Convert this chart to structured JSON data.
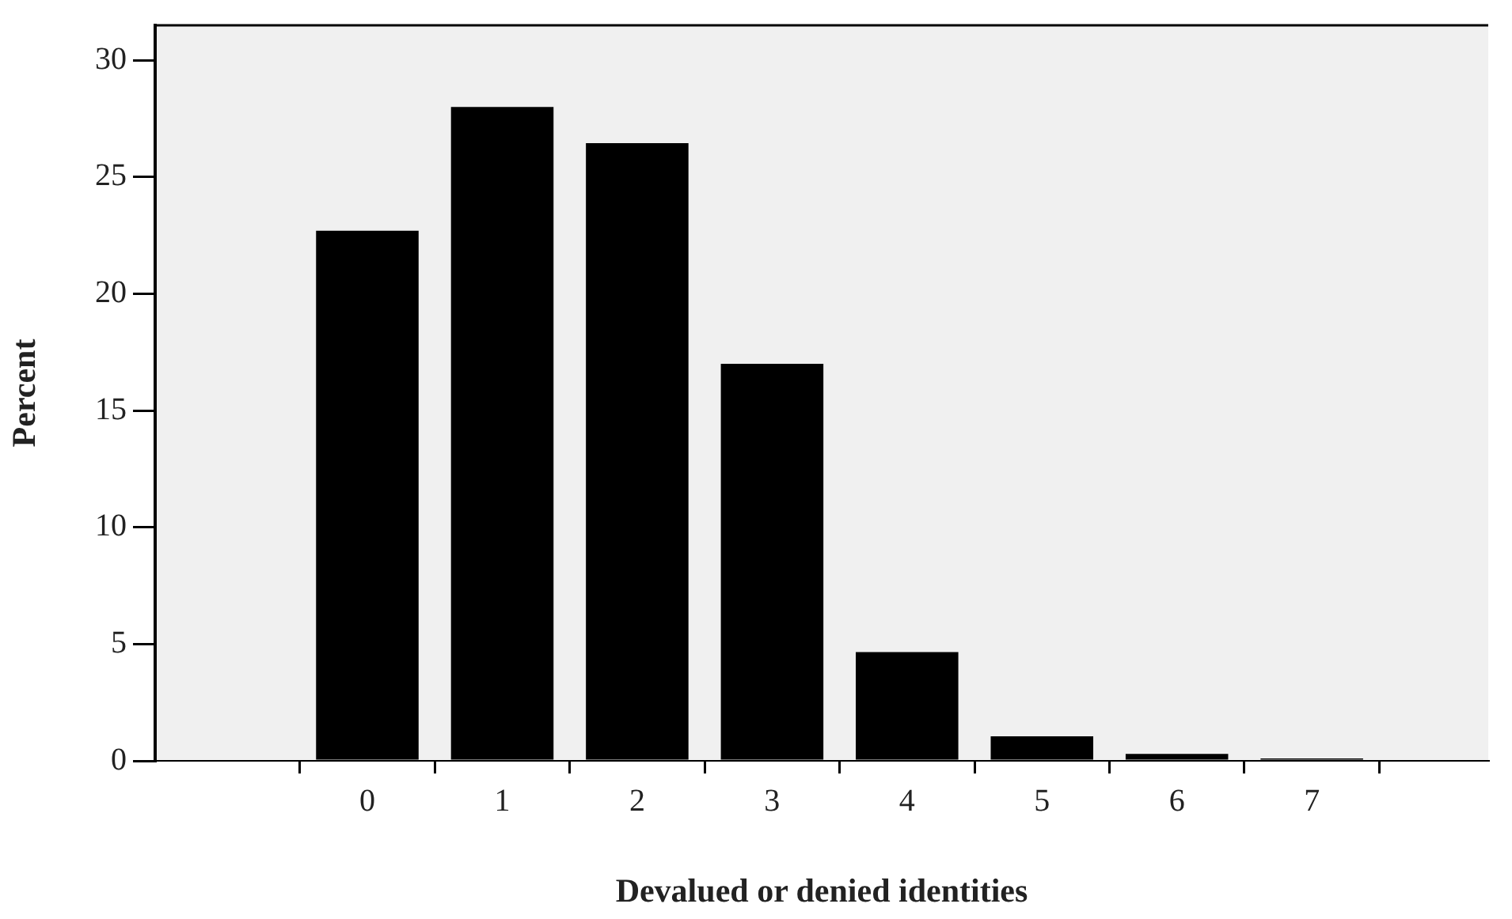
{
  "chart_data": {
    "type": "bar",
    "xlabel": "Devalued or denied identities",
    "ylabel": "Percent",
    "categories": [
      "0",
      "1",
      "2",
      "3",
      "4",
      "5",
      "6",
      "7"
    ],
    "values": [
      22.7,
      28.0,
      26.45,
      17.0,
      4.66,
      1.05,
      0.3,
      0.1
    ],
    "color": "#000000",
    "ylim": [
      0,
      31.5
    ],
    "yticks": [
      0,
      5,
      10,
      15,
      20,
      25,
      30
    ],
    "grid": false,
    "legend": false
  }
}
